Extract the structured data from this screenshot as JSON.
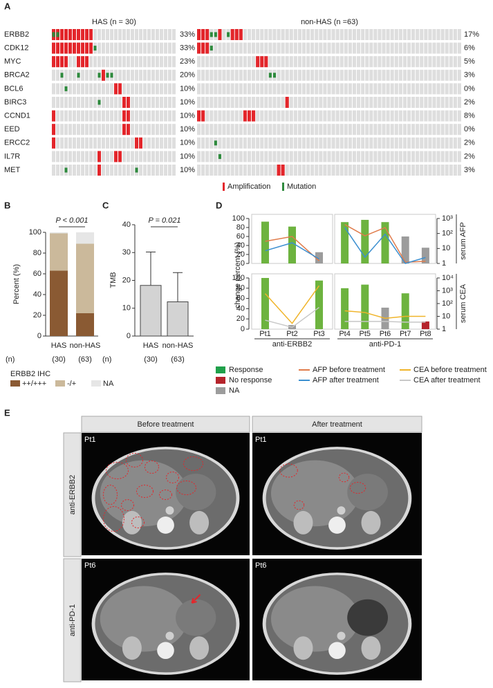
{
  "chart_data": [
    {
      "type": "oncoprint",
      "label": "A",
      "group_titles": [
        "HAS (n = 30)",
        "non-HAS (n =63)"
      ],
      "n_columns": [
        30,
        63
      ],
      "rows": [
        {
          "gene": "ERBB2",
          "has_pct": "33%",
          "non_has_pct": "17%",
          "has_amp": [
            0,
            1,
            2,
            3,
            4,
            5,
            6,
            7,
            8,
            9
          ],
          "has_mut": [
            0,
            1
          ],
          "non_has_amp": [
            0,
            1,
            2,
            5,
            8,
            9,
            10
          ],
          "non_has_mut": [
            3,
            4,
            7
          ]
        },
        {
          "gene": "CDK12",
          "has_pct": "33%",
          "non_has_pct": "6%",
          "has_amp": [
            0,
            1,
            2,
            3,
            4,
            5,
            6,
            7,
            8,
            9
          ],
          "has_mut": [
            10
          ],
          "non_has_amp": [
            0,
            1,
            2
          ],
          "non_has_mut": [
            3
          ]
        },
        {
          "gene": "MYC",
          "has_pct": "23%",
          "non_has_pct": "5%",
          "has_amp": [
            0,
            1,
            2,
            3,
            6,
            7,
            8
          ],
          "has_mut": [],
          "non_has_amp": [
            14,
            15,
            16
          ],
          "non_has_mut": []
        },
        {
          "gene": "BRCA2",
          "has_pct": "20%",
          "non_has_pct": "3%",
          "has_amp": [
            12
          ],
          "has_mut": [
            2,
            6,
            11,
            13,
            14
          ],
          "non_has_amp": [],
          "non_has_mut": [
            17,
            18
          ]
        },
        {
          "gene": "BCL6",
          "has_pct": "10%",
          "non_has_pct": "0%",
          "has_amp": [
            15,
            16
          ],
          "has_mut": [
            3
          ],
          "non_has_amp": [],
          "non_has_mut": []
        },
        {
          "gene": "BIRC3",
          "has_pct": "10%",
          "non_has_pct": "2%",
          "has_amp": [
            17,
            18
          ],
          "has_mut": [
            11
          ],
          "non_has_amp": [
            21
          ],
          "non_has_mut": []
        },
        {
          "gene": "CCND1",
          "has_pct": "10%",
          "non_has_pct": "8%",
          "has_amp": [
            0,
            17,
            18
          ],
          "has_mut": [],
          "non_has_amp": [
            0,
            1,
            11,
            12,
            13
          ],
          "non_has_mut": []
        },
        {
          "gene": "EED",
          "has_pct": "10%",
          "non_has_pct": "0%",
          "has_amp": [
            0,
            17,
            18
          ],
          "has_mut": [],
          "non_has_amp": [],
          "non_has_mut": []
        },
        {
          "gene": "ERCC2",
          "has_pct": "10%",
          "non_has_pct": "2%",
          "has_amp": [
            0,
            20,
            21
          ],
          "has_mut": [],
          "non_has_amp": [],
          "non_has_mut": [
            4
          ]
        },
        {
          "gene": "IL7R",
          "has_pct": "10%",
          "non_has_pct": "2%",
          "has_amp": [
            11,
            15,
            16
          ],
          "has_mut": [],
          "non_has_amp": [],
          "non_has_mut": [
            5
          ]
        },
        {
          "gene": "MET",
          "has_pct": "10%",
          "non_has_pct": "3%",
          "has_amp": [
            11
          ],
          "has_mut": [
            3,
            20
          ],
          "non_has_amp": [
            19,
            20
          ],
          "non_has_mut": []
        }
      ],
      "legend": [
        {
          "name": "Amplification",
          "color": "#e3262b"
        },
        {
          "name": "Mutation",
          "color": "#2e8a3d"
        }
      ]
    },
    {
      "type": "stacked_bar",
      "label": "B",
      "ylabel": "Percent (%)",
      "annotation": "P < 0.001",
      "categories": [
        "HAS",
        "non-HAS"
      ],
      "n_title": "(n)",
      "n_labels": [
        "(30)",
        "(63)"
      ],
      "legend_title": "ERBB2 IHC",
      "series": [
        {
          "name": "++/+++",
          "color": "#8a5a33",
          "values": [
            63,
            22
          ]
        },
        {
          "name": "-/+",
          "color": "#cbb99b",
          "values": [
            36,
            67
          ]
        },
        {
          "name": "NA",
          "color": "#e6e6e6",
          "values": [
            1,
            11
          ]
        }
      ],
      "ylim": [
        0,
        100
      ],
      "yticks": [
        0,
        20,
        40,
        60,
        80,
        100
      ]
    },
    {
      "type": "error_bar",
      "label": "C",
      "ylabel": "TMB",
      "annotation": "P = 0.021",
      "categories": [
        "HAS",
        "non-HAS"
      ],
      "n_title": "(n)",
      "n_labels": [
        "(30)",
        "(63)"
      ],
      "values": [
        18.2,
        12.3
      ],
      "errors": [
        12,
        10.5
      ],
      "color": "#d3d3d3",
      "ylim": [
        0,
        40
      ],
      "yticks": [
        0,
        10,
        20,
        30,
        40
      ]
    },
    {
      "type": "combo",
      "label": "D",
      "ylabel": "change percent (%)",
      "categories": [
        "Pt1",
        "Pt2",
        "Pt3",
        "Pt4",
        "Pt5",
        "Pt6",
        "Pt7",
        "Pt8"
      ],
      "groups": [
        {
          "name": "anti-ERBB2",
          "members": [
            "Pt1",
            "Pt2",
            "Pt3"
          ]
        },
        {
          "name": "anti-PD-1",
          "members": [
            "Pt4",
            "Pt5",
            "Pt6",
            "Pt7",
            "Pt8"
          ]
        }
      ],
      "ylim": [
        0,
        100
      ],
      "yticks": [
        0,
        20,
        40,
        60,
        80,
        100
      ],
      "legend": [
        {
          "name": "Response",
          "color": "#1fa04a"
        },
        {
          "name": "No response",
          "color": "#b5232b"
        },
        {
          "name": "NA",
          "color": "#9c9c9c"
        }
      ],
      "panels": [
        {
          "right_label": "serum AFP",
          "y2lim": [
            1,
            1000
          ],
          "y2log": true,
          "y2ticks": [
            1,
            10,
            {
              "value": 100,
              "label": "10²"
            },
            {
              "value": 1000,
              "label": "10³"
            }
          ],
          "bars": {
            "values": [
              93,
              82,
              25,
              92,
              97,
              92,
              60,
              35
            ],
            "colors": [
              "#6db33f",
              "#6db33f",
              "#9c9c9c",
              "#6db33f",
              "#6db33f",
              "#6db33f",
              "#9c9c9c",
              "#9c9c9c"
            ]
          },
          "series": [
            {
              "name": "AFP before treatment",
              "color": "#e07b4a",
              "values": [
                30,
                63,
                1.5,
                400,
                70,
                250,
                1.2,
                1.4
              ]
            },
            {
              "name": "AFP after treatment",
              "color": "#3b8fd0",
              "values": [
                7,
                24,
                2,
                250,
                2.6,
                90,
                1,
                2.5
              ]
            }
          ]
        },
        {
          "right_label": "serum CEA",
          "y2lim": [
            1,
            10000
          ],
          "y2log": true,
          "y2ticks": [
            1,
            10,
            {
              "value": 100,
              "label": "10²"
            },
            {
              "value": 1000,
              "label": "10³"
            },
            {
              "value": 10000,
              "label": "10⁴"
            }
          ],
          "bars": {
            "values": [
              100,
              8,
              95,
              80,
              87,
              42,
              70,
              15
            ],
            "colors": [
              "#6db33f",
              "#9c9c9c",
              "#6db33f",
              "#6db33f",
              "#6db33f",
              "#9c9c9c",
              "#6db33f",
              "#b5232b"
            ]
          },
          "series": [
            {
              "name": "CEA before treatment",
              "color": "#f0b429",
              "values": [
                600,
                2.8,
                2500,
                27,
                20,
                7,
                10,
                10
              ]
            },
            {
              "name": "CEA after treatment",
              "color": "#c8c8c8",
              "values": [
                5,
                1.4,
                50,
                4,
                4,
                4,
                3.5,
                3.5
              ]
            }
          ]
        }
      ]
    }
  ],
  "panel_e": {
    "label": "E",
    "columns": [
      "Before treatment",
      "After treatment"
    ],
    "rows": [
      {
        "name": "anti-ERBB2",
        "patient": "Pt1"
      },
      {
        "name": "anti-PD-1",
        "patient": "Pt6"
      }
    ]
  }
}
